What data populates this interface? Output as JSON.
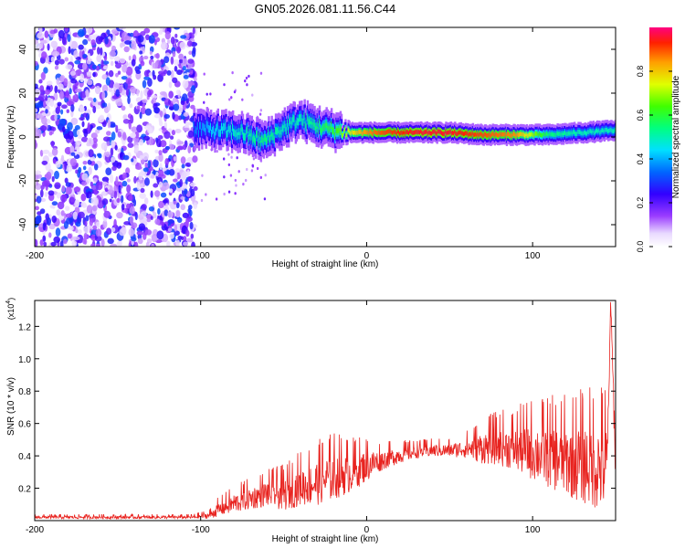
{
  "figure_title": "GN05.2026.081.11.56.C44",
  "chart_data": [
    {
      "type": "heatmap",
      "title": "GN05.2026.081.11.56.C44",
      "xlabel": "Height of straight line (km)",
      "ylabel": "Frequency (Hz)",
      "xlim": [
        -200,
        150
      ],
      "ylim": [
        -50,
        50
      ],
      "xticks": [
        -200,
        -100,
        0,
        100
      ],
      "yticks": [
        -40,
        -20,
        0,
        20,
        40
      ],
      "colorbar": {
        "label": "Normalized spectral amplitude",
        "range": [
          0,
          1
        ],
        "ticks": [
          0,
          0.2,
          0.4,
          0.6,
          0.8
        ],
        "tick_labels": [
          "0.0",
          "0.2",
          "0.4",
          "0.6",
          "0.8"
        ]
      },
      "description_series": {
        "noise_region_x": [
          -200,
          -103
        ],
        "ridge_center_x": [
          -105,
          -90,
          -75,
          -62,
          -50,
          -40,
          -30,
          -20,
          -10,
          0,
          10,
          30,
          50,
          70,
          90,
          110,
          130,
          150
        ],
        "ridge_center_y": [
          4,
          3,
          2,
          -2,
          4,
          8,
          5,
          3,
          2,
          2,
          2,
          2,
          2,
          1,
          1,
          1,
          2,
          3
        ],
        "ridge_amplitude": [
          0.35,
          0.45,
          0.5,
          0.55,
          0.5,
          0.5,
          0.55,
          0.6,
          0.75,
          0.85,
          0.9,
          0.95,
          0.95,
          0.9,
          0.85,
          0.55,
          0.5,
          0.5
        ]
      }
    },
    {
      "type": "line",
      "title": "",
      "xlabel": "Height of straight line (km)",
      "ylabel": "SNR (10 * v/v)",
      "y_multiplier_label": "(x10",
      "y_multiplier_exponent": "4",
      "y_multiplier_close": ")",
      "xlim": [
        -200,
        150
      ],
      "ylim": [
        0,
        1.36
      ],
      "xticks": [
        -200,
        -100,
        0,
        100
      ],
      "yticks": [
        0.2,
        0.4,
        0.6,
        0.8,
        1.0,
        1.2
      ],
      "ytick_labels": [
        "0.2",
        "0.4",
        "0.6",
        "0.8",
        "1.0",
        "1.2"
      ],
      "series": [
        {
          "name": "SNR",
          "color": "#e8231f",
          "x_anchor": [
            -200,
            -150,
            -105,
            -95,
            -90,
            -80,
            -70,
            -60,
            -50,
            -40,
            -30,
            -20,
            -10,
            0,
            10,
            20,
            30,
            40,
            50,
            60,
            70,
            80,
            90,
            100,
            110,
            120,
            130,
            140,
            145,
            147,
            150
          ],
          "y_anchor": [
            0.02,
            0.02,
            0.02,
            0.03,
            0.06,
            0.1,
            0.13,
            0.16,
            0.15,
            0.2,
            0.22,
            0.26,
            0.28,
            0.33,
            0.37,
            0.4,
            0.42,
            0.43,
            0.43,
            0.44,
            0.44,
            0.45,
            0.43,
            0.41,
            0.38,
            0.35,
            0.33,
            0.31,
            0.3,
            1.35,
            0.35
          ],
          "noise_amplitude": [
            0.01,
            0.01,
            0.01,
            0.02,
            0.04,
            0.06,
            0.07,
            0.08,
            0.1,
            0.12,
            0.14,
            0.15,
            0.12,
            0.1,
            0.06,
            0.05,
            0.04,
            0.04,
            0.04,
            0.06,
            0.1,
            0.12,
            0.14,
            0.18,
            0.2,
            0.22,
            0.25,
            0.28,
            0.3,
            0.0,
            0.2
          ]
        }
      ]
    }
  ]
}
